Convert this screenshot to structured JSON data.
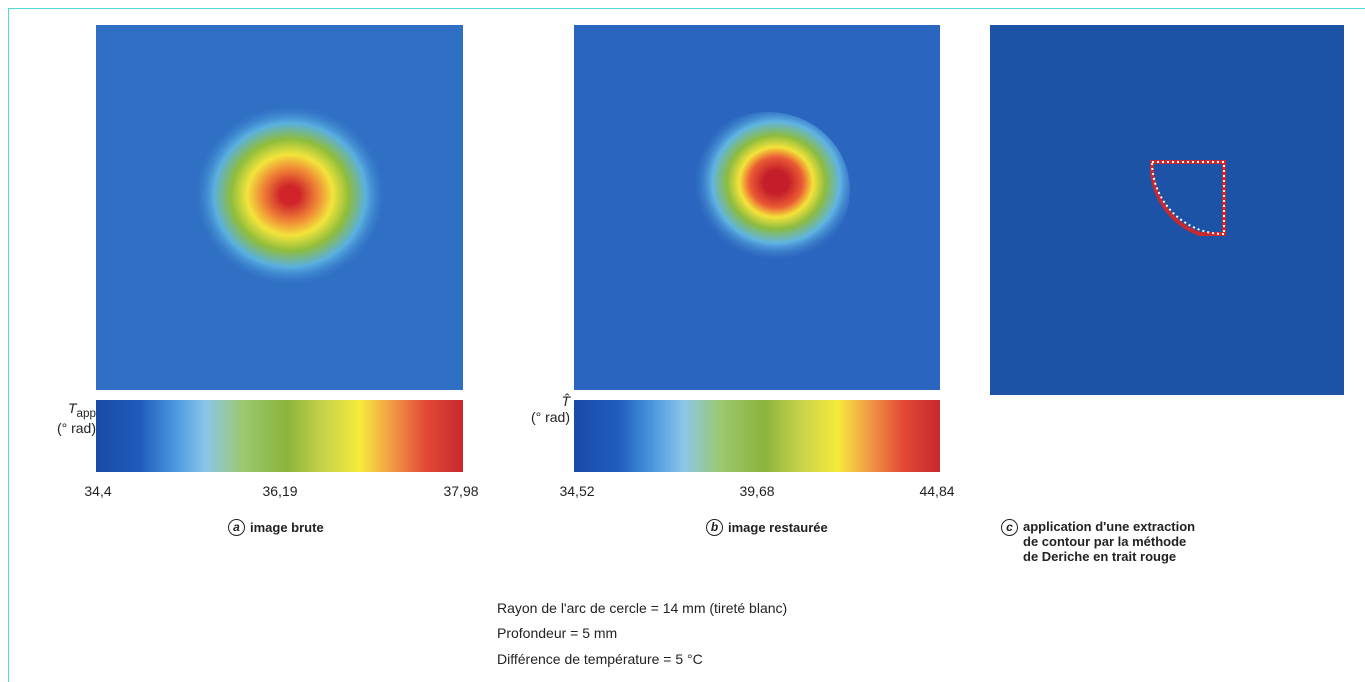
{
  "panels": [
    {
      "scale": {
        "symbol": "T",
        "subscript": "app",
        "unit": "(° rad)",
        "ticks": [
          "34,4",
          "36,19",
          "37,98"
        ]
      },
      "letter": "a",
      "caption": "image brute"
    },
    {
      "scale": {
        "symbol": "T̂",
        "unit": "(° rad)",
        "ticks": [
          "34,52",
          "39,68",
          "44,84"
        ]
      },
      "letter": "b",
      "caption": "image restaurée"
    },
    {
      "letter": "c",
      "caption_lines": [
        "application d'une extraction",
        "de contour par la méthode",
        "de Deriche en trait rouge"
      ]
    }
  ],
  "notes": [
    "Rayon de l'arc de cercle = 14 mm (tireté blanc)",
    "Profondeur = 5 mm",
    "Différence de température = 5 °C"
  ]
}
